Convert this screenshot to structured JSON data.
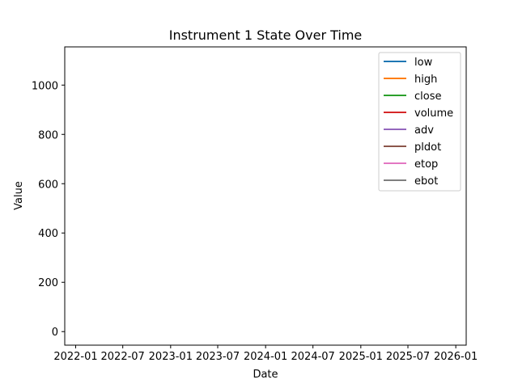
{
  "chart_data": {
    "type": "line",
    "title": "Instrument 1 State Over Time",
    "xlabel": "Date",
    "ylabel": "Value",
    "x_ticks": [
      "2022-01",
      "2022-07",
      "2023-01",
      "2023-07",
      "2024-01",
      "2024-07",
      "2025-01",
      "2025-07",
      "2026-01"
    ],
    "xlim": [
      "2021-11-20",
      "2026-02-10"
    ],
    "ylim": [
      -55,
      1155
    ],
    "y_ticks": [
      0,
      200,
      400,
      600,
      800,
      1000
    ],
    "legend_placement": "top-right",
    "grid": false,
    "series": [
      {
        "name": "low",
        "color": "#1f77b4",
        "points": []
      },
      {
        "name": "high",
        "color": "#ff7f0e",
        "points": []
      },
      {
        "name": "close",
        "color": "#2ca02c",
        "points": []
      },
      {
        "name": "volume",
        "color": "#d62728",
        "points": []
      },
      {
        "name": "adv",
        "color": "#9467bd",
        "points": []
      },
      {
        "name": "pldot",
        "color": "#8c564b",
        "points": []
      },
      {
        "name": "etop",
        "color": "#e377c2",
        "points": []
      },
      {
        "name": "ebot",
        "color": "#7f7f7f",
        "points": []
      }
    ]
  }
}
